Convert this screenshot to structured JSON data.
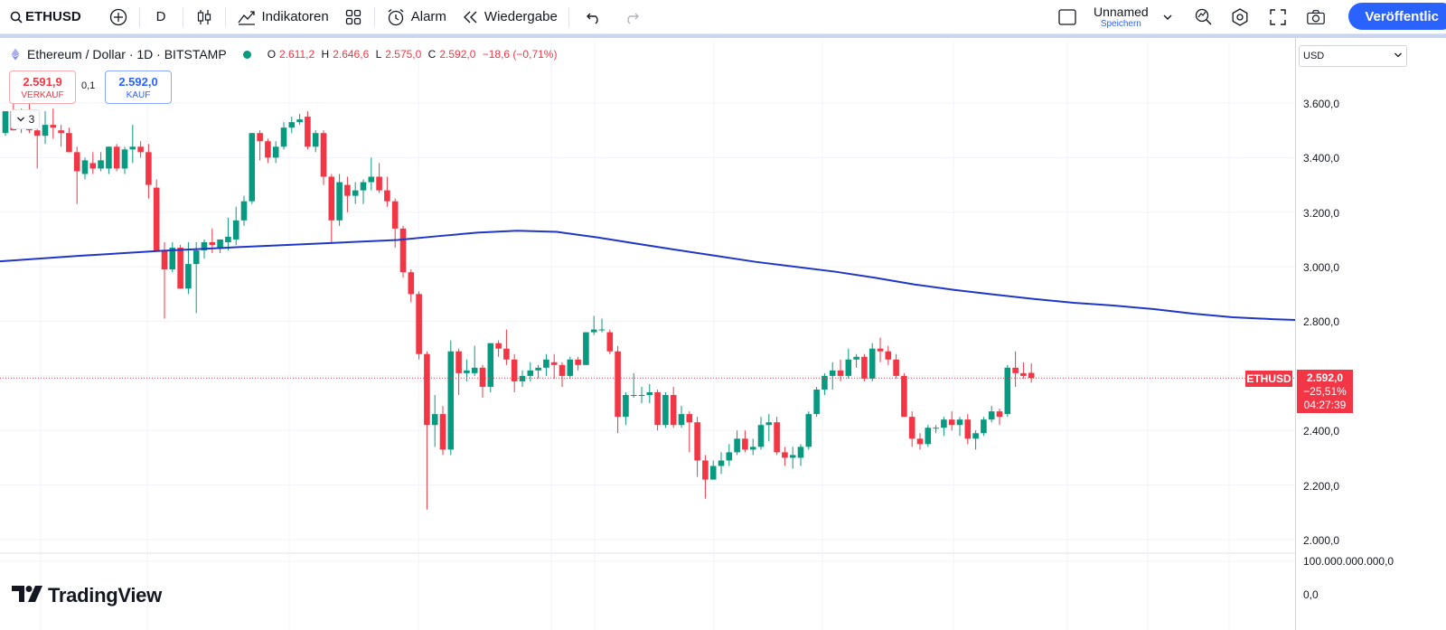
{
  "toolbar": {
    "symbol": "ETHUSD",
    "interval": "D",
    "indicators_label": "Indikatoren",
    "alert_label": "Alarm",
    "replay_label": "Wiedergabe",
    "layout_name": "Unnamed",
    "save_label": "Speichern",
    "publish_label": "Veröffentlic"
  },
  "legend": {
    "title": "Ethereum / Dollar · 1D · BITSTAMP",
    "open_key": "O",
    "open": "2.611,2",
    "high_key": "H",
    "high": "2.646,6",
    "low_key": "L",
    "low": "2.575,0",
    "close_key": "C",
    "close": "2.592,0",
    "change": "−18,6 (−0,71%)"
  },
  "trade": {
    "sell_price": "2.591,9",
    "sell_label": "VERKAUF",
    "spread": "0,1",
    "buy_price": "2.592,0",
    "buy_label": "KAUF"
  },
  "collapse_count": "3",
  "branding": "TradingView",
  "price_scale": {
    "currency": "USD",
    "ticks": [
      "3.600,0",
      "3.400,0",
      "3.200,0",
      "3.000,0",
      "2.800,0",
      "2.400,0",
      "2.200,0",
      "2.000,0"
    ],
    "volume_ticks": [
      "100.000.000.000,0",
      "0,0"
    ],
    "last_price": "2.592,0",
    "last_change": "−25,51%",
    "countdown": "04:27:39",
    "symbol_tag": "ETHUSD"
  },
  "colors": {
    "up": "#089981",
    "down": "#f23645",
    "ma": "#2036c8",
    "grid": "#f0f3fa",
    "accent": "#2962ff"
  },
  "chart_data": {
    "type": "candlestick",
    "ylim": [
      1980,
      3650
    ],
    "y_ticks": [
      3600,
      3400,
      3200,
      3000,
      2800,
      2400,
      2200,
      2000
    ],
    "last_price": 2592,
    "candles": [
      {
        "o": 3490,
        "h": 3560,
        "l": 3480,
        "c": 3570
      },
      {
        "o": 3570,
        "h": 3600,
        "l": 3500,
        "c": 3500
      },
      {
        "o": 3530,
        "h": 3580,
        "l": 3490,
        "c": 3560
      },
      {
        "o": 3570,
        "h": 3600,
        "l": 3490,
        "c": 3500
      },
      {
        "o": 3500,
        "h": 3560,
        "l": 3360,
        "c": 3480
      },
      {
        "o": 3480,
        "h": 3570,
        "l": 3450,
        "c": 3520
      },
      {
        "o": 3520,
        "h": 3580,
        "l": 3470,
        "c": 3510
      },
      {
        "o": 3500,
        "h": 3520,
        "l": 3440,
        "c": 3490
      },
      {
        "o": 3490,
        "h": 3510,
        "l": 3420,
        "c": 3420
      },
      {
        "o": 3420,
        "h": 3440,
        "l": 3230,
        "c": 3350
      },
      {
        "o": 3340,
        "h": 3400,
        "l": 3320,
        "c": 3390
      },
      {
        "o": 3380,
        "h": 3420,
        "l": 3340,
        "c": 3360
      },
      {
        "o": 3360,
        "h": 3420,
        "l": 3350,
        "c": 3390
      },
      {
        "o": 3360,
        "h": 3440,
        "l": 3340,
        "c": 3440
      },
      {
        "o": 3440,
        "h": 3450,
        "l": 3350,
        "c": 3360
      },
      {
        "o": 3360,
        "h": 3440,
        "l": 3340,
        "c": 3430
      },
      {
        "o": 3430,
        "h": 3520,
        "l": 3380,
        "c": 3440
      },
      {
        "o": 3440,
        "h": 3460,
        "l": 3400,
        "c": 3420
      },
      {
        "o": 3420,
        "h": 3450,
        "l": 3250,
        "c": 3300
      },
      {
        "o": 3290,
        "h": 3320,
        "l": 3060,
        "c": 3060
      },
      {
        "o": 3060,
        "h": 3090,
        "l": 2810,
        "c": 2990
      },
      {
        "o": 2990,
        "h": 3090,
        "l": 2980,
        "c": 3070
      },
      {
        "o": 3070,
        "h": 3080,
        "l": 2920,
        "c": 2920
      },
      {
        "o": 2920,
        "h": 3090,
        "l": 2900,
        "c": 3010
      },
      {
        "o": 3010,
        "h": 3090,
        "l": 2830,
        "c": 3060
      },
      {
        "o": 3060,
        "h": 3100,
        "l": 3030,
        "c": 3090
      },
      {
        "o": 3090,
        "h": 3140,
        "l": 3050,
        "c": 3080
      },
      {
        "o": 3070,
        "h": 3100,
        "l": 3050,
        "c": 3100
      },
      {
        "o": 3090,
        "h": 3180,
        "l": 3060,
        "c": 3110
      },
      {
        "o": 3100,
        "h": 3220,
        "l": 3080,
        "c": 3170
      },
      {
        "o": 3170,
        "h": 3260,
        "l": 3150,
        "c": 3240
      },
      {
        "o": 3240,
        "h": 3490,
        "l": 3230,
        "c": 3490
      },
      {
        "o": 3490,
        "h": 3500,
        "l": 3390,
        "c": 3460
      },
      {
        "o": 3460,
        "h": 3470,
        "l": 3380,
        "c": 3400
      },
      {
        "o": 3400,
        "h": 3460,
        "l": 3380,
        "c": 3440
      },
      {
        "o": 3440,
        "h": 3530,
        "l": 3430,
        "c": 3510
      },
      {
        "o": 3510,
        "h": 3550,
        "l": 3490,
        "c": 3530
      },
      {
        "o": 3530,
        "h": 3560,
        "l": 3520,
        "c": 3540
      },
      {
        "o": 3550,
        "h": 3570,
        "l": 3430,
        "c": 3440
      },
      {
        "o": 3440,
        "h": 3500,
        "l": 3420,
        "c": 3490
      },
      {
        "o": 3490,
        "h": 3500,
        "l": 3300,
        "c": 3330
      },
      {
        "o": 3330,
        "h": 3340,
        "l": 3090,
        "c": 3170
      },
      {
        "o": 3170,
        "h": 3340,
        "l": 3150,
        "c": 3310
      },
      {
        "o": 3300,
        "h": 3330,
        "l": 3200,
        "c": 3260
      },
      {
        "o": 3260,
        "h": 3310,
        "l": 3230,
        "c": 3280
      },
      {
        "o": 3280,
        "h": 3320,
        "l": 3230,
        "c": 3310
      },
      {
        "o": 3310,
        "h": 3400,
        "l": 3280,
        "c": 3330
      },
      {
        "o": 3330,
        "h": 3380,
        "l": 3270,
        "c": 3280
      },
      {
        "o": 3280,
        "h": 3330,
        "l": 3220,
        "c": 3240
      },
      {
        "o": 3240,
        "h": 3250,
        "l": 3070,
        "c": 3140
      },
      {
        "o": 3140,
        "h": 3150,
        "l": 2960,
        "c": 2980
      },
      {
        "o": 2980,
        "h": 2990,
        "l": 2870,
        "c": 2900
      },
      {
        "o": 2900,
        "h": 2910,
        "l": 2660,
        "c": 2680
      },
      {
        "o": 2680,
        "h": 2690,
        "l": 2110,
        "c": 2420
      },
      {
        "o": 2420,
        "h": 2530,
        "l": 2340,
        "c": 2460
      },
      {
        "o": 2460,
        "h": 2490,
        "l": 2310,
        "c": 2330
      },
      {
        "o": 2330,
        "h": 2730,
        "l": 2310,
        "c": 2690
      },
      {
        "o": 2690,
        "h": 2700,
        "l": 2530,
        "c": 2610
      },
      {
        "o": 2610,
        "h": 2660,
        "l": 2580,
        "c": 2620
      },
      {
        "o": 2610,
        "h": 2710,
        "l": 2600,
        "c": 2630
      },
      {
        "o": 2630,
        "h": 2640,
        "l": 2520,
        "c": 2560
      },
      {
        "o": 2560,
        "h": 2720,
        "l": 2540,
        "c": 2720
      },
      {
        "o": 2720,
        "h": 2730,
        "l": 2670,
        "c": 2700
      },
      {
        "o": 2700,
        "h": 2770,
        "l": 2640,
        "c": 2660
      },
      {
        "o": 2660,
        "h": 2680,
        "l": 2540,
        "c": 2580
      },
      {
        "o": 2580,
        "h": 2620,
        "l": 2560,
        "c": 2600
      },
      {
        "o": 2600,
        "h": 2650,
        "l": 2580,
        "c": 2620
      },
      {
        "o": 2620,
        "h": 2640,
        "l": 2590,
        "c": 2630
      },
      {
        "o": 2630,
        "h": 2680,
        "l": 2600,
        "c": 2660
      },
      {
        "o": 2650,
        "h": 2680,
        "l": 2590,
        "c": 2640
      },
      {
        "o": 2640,
        "h": 2650,
        "l": 2560,
        "c": 2600
      },
      {
        "o": 2600,
        "h": 2670,
        "l": 2590,
        "c": 2660
      },
      {
        "o": 2660,
        "h": 2670,
        "l": 2620,
        "c": 2640
      },
      {
        "o": 2640,
        "h": 2760,
        "l": 2640,
        "c": 2760
      },
      {
        "o": 2760,
        "h": 2820,
        "l": 2750,
        "c": 2770
      },
      {
        "o": 2770,
        "h": 2810,
        "l": 2760,
        "c": 2770
      },
      {
        "o": 2760,
        "h": 2770,
        "l": 2680,
        "c": 2690
      },
      {
        "o": 2690,
        "h": 2710,
        "l": 2390,
        "c": 2450
      },
      {
        "o": 2450,
        "h": 2540,
        "l": 2420,
        "c": 2530
      },
      {
        "o": 2530,
        "h": 2610,
        "l": 2520,
        "c": 2530
      },
      {
        "o": 2530,
        "h": 2560,
        "l": 2500,
        "c": 2530
      },
      {
        "o": 2530,
        "h": 2570,
        "l": 2500,
        "c": 2540
      },
      {
        "o": 2540,
        "h": 2550,
        "l": 2400,
        "c": 2420
      },
      {
        "o": 2420,
        "h": 2540,
        "l": 2410,
        "c": 2530
      },
      {
        "o": 2530,
        "h": 2560,
        "l": 2410,
        "c": 2420
      },
      {
        "o": 2420,
        "h": 2490,
        "l": 2410,
        "c": 2460
      },
      {
        "o": 2460,
        "h": 2470,
        "l": 2320,
        "c": 2430
      },
      {
        "o": 2430,
        "h": 2450,
        "l": 2230,
        "c": 2290
      },
      {
        "o": 2290,
        "h": 2310,
        "l": 2150,
        "c": 2220
      },
      {
        "o": 2220,
        "h": 2290,
        "l": 2220,
        "c": 2270
      },
      {
        "o": 2270,
        "h": 2320,
        "l": 2240,
        "c": 2290
      },
      {
        "o": 2290,
        "h": 2350,
        "l": 2270,
        "c": 2320
      },
      {
        "o": 2320,
        "h": 2400,
        "l": 2310,
        "c": 2370
      },
      {
        "o": 2370,
        "h": 2400,
        "l": 2320,
        "c": 2330
      },
      {
        "o": 2330,
        "h": 2370,
        "l": 2310,
        "c": 2340
      },
      {
        "o": 2340,
        "h": 2450,
        "l": 2330,
        "c": 2420
      },
      {
        "o": 2420,
        "h": 2460,
        "l": 2360,
        "c": 2430
      },
      {
        "o": 2430,
        "h": 2450,
        "l": 2310,
        "c": 2320
      },
      {
        "o": 2320,
        "h": 2340,
        "l": 2270,
        "c": 2300
      },
      {
        "o": 2300,
        "h": 2340,
        "l": 2260,
        "c": 2310
      },
      {
        "o": 2300,
        "h": 2350,
        "l": 2270,
        "c": 2340
      },
      {
        "o": 2340,
        "h": 2470,
        "l": 2330,
        "c": 2460
      },
      {
        "o": 2460,
        "h": 2560,
        "l": 2450,
        "c": 2550
      },
      {
        "o": 2550,
        "h": 2610,
        "l": 2530,
        "c": 2600
      },
      {
        "o": 2600,
        "h": 2650,
        "l": 2550,
        "c": 2620
      },
      {
        "o": 2620,
        "h": 2660,
        "l": 2580,
        "c": 2600
      },
      {
        "o": 2600,
        "h": 2700,
        "l": 2590,
        "c": 2660
      },
      {
        "o": 2660,
        "h": 2680,
        "l": 2630,
        "c": 2670
      },
      {
        "o": 2670,
        "h": 2680,
        "l": 2580,
        "c": 2590
      },
      {
        "o": 2590,
        "h": 2720,
        "l": 2580,
        "c": 2700
      },
      {
        "o": 2700,
        "h": 2740,
        "l": 2650,
        "c": 2690
      },
      {
        "o": 2690,
        "h": 2710,
        "l": 2640,
        "c": 2660
      },
      {
        "o": 2660,
        "h": 2680,
        "l": 2590,
        "c": 2600
      },
      {
        "o": 2600,
        "h": 2610,
        "l": 2450,
        "c": 2450
      },
      {
        "o": 2450,
        "h": 2470,
        "l": 2340,
        "c": 2370
      },
      {
        "o": 2370,
        "h": 2390,
        "l": 2330,
        "c": 2350
      },
      {
        "o": 2350,
        "h": 2420,
        "l": 2340,
        "c": 2410
      },
      {
        "o": 2410,
        "h": 2420,
        "l": 2390,
        "c": 2410
      },
      {
        "o": 2410,
        "h": 2450,
        "l": 2380,
        "c": 2440
      },
      {
        "o": 2440,
        "h": 2470,
        "l": 2400,
        "c": 2420
      },
      {
        "o": 2420,
        "h": 2450,
        "l": 2380,
        "c": 2440
      },
      {
        "o": 2440,
        "h": 2460,
        "l": 2350,
        "c": 2370
      },
      {
        "o": 2370,
        "h": 2400,
        "l": 2330,
        "c": 2390
      },
      {
        "o": 2390,
        "h": 2450,
        "l": 2380,
        "c": 2440
      },
      {
        "o": 2440,
        "h": 2490,
        "l": 2430,
        "c": 2470
      },
      {
        "o": 2470,
        "h": 2480,
        "l": 2420,
        "c": 2450
      },
      {
        "o": 2460,
        "h": 2640,
        "l": 2450,
        "c": 2630
      },
      {
        "o": 2630,
        "h": 2690,
        "l": 2560,
        "c": 2610
      },
      {
        "o": 2610,
        "h": 2650,
        "l": 2590,
        "c": 2600
      },
      {
        "o": 2611.2,
        "h": 2646.6,
        "l": 2575,
        "c": 2592
      }
    ],
    "ma": {
      "color": "#2036c8",
      "points": [
        [
          0,
          3020
        ],
        [
          10,
          3040
        ],
        [
          20,
          3058
        ],
        [
          30,
          3072
        ],
        [
          40,
          3085
        ],
        [
          50,
          3098
        ],
        [
          55,
          3112
        ],
        [
          60,
          3125
        ],
        [
          65,
          3132
        ],
        [
          70,
          3128
        ],
        [
          75,
          3108
        ],
        [
          80,
          3085
        ],
        [
          85,
          3062
        ],
        [
          90,
          3040
        ],
        [
          95,
          3018
        ],
        [
          100,
          3000
        ],
        [
          105,
          2982
        ],
        [
          110,
          2960
        ],
        [
          115,
          2935
        ],
        [
          120,
          2915
        ],
        [
          125,
          2898
        ],
        [
          130,
          2882
        ],
        [
          135,
          2868
        ],
        [
          140,
          2858
        ],
        [
          145,
          2845
        ],
        [
          150,
          2828
        ],
        [
          155,
          2815
        ],
        [
          160,
          2808
        ],
        [
          163,
          2805
        ]
      ]
    }
  }
}
